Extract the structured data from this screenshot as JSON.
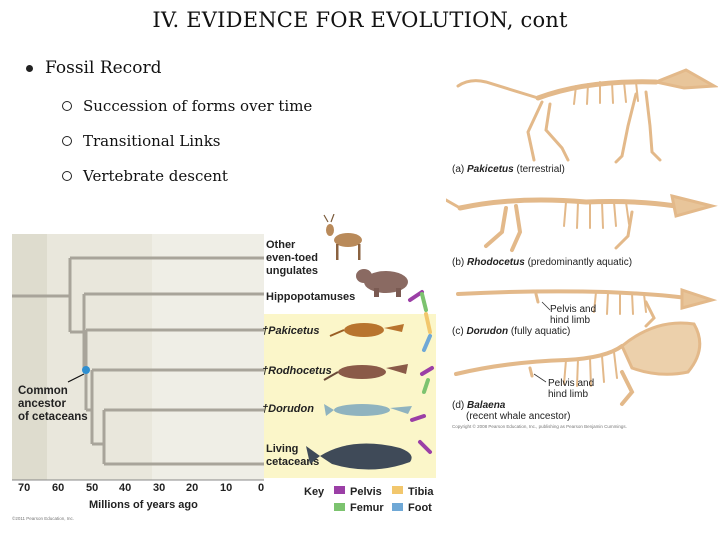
{
  "slide": {
    "title": "IV. EVIDENCE FOR EVOLUTION, cont",
    "bullet": "Fossil Record",
    "subbullets": [
      "Succession of forms over time",
      "Transitional Links",
      "Vertebrate descent"
    ]
  },
  "tree": {
    "taxa": [
      "Other even-toed ungulates",
      "Hippopotamuses",
      "Pakicetus",
      "Rodhocetus",
      "Dorudon",
      "Living cetaceans"
    ],
    "taxa_lines": [
      [
        "Other",
        "even-toed",
        "ungulates"
      ],
      [
        "Hippopotamuses"
      ],
      [
        "Pakicetus"
      ],
      [
        "Rodhocetus"
      ],
      [
        "Dorudon"
      ],
      [
        "Living",
        "cetaceans"
      ]
    ],
    "dagger": "†",
    "ancestor_label": [
      "Common",
      "ancestor",
      "of cetaceans"
    ],
    "axis_ticks": [
      "70",
      "60",
      "50",
      "40",
      "30",
      "20",
      "10",
      "0"
    ],
    "axis_title": "Millions of years ago",
    "key_title": "Key",
    "key": [
      {
        "label": "Pelvis",
        "color": "#9b3fa6"
      },
      {
        "label": "Tibia",
        "color": "#f2c76d"
      },
      {
        "label": "Femur",
        "color": "#7cc36f"
      },
      {
        "label": "Foot",
        "color": "#6fa8d6"
      }
    ],
    "copyright": "©2011 Pearson Education, Inc."
  },
  "skeletons": {
    "labels": [
      {
        "prefix": "(a)",
        "name": "Pakicetus",
        "suffix": "(terrestrial)"
      },
      {
        "prefix": "(b)",
        "name": "Rhodocetus",
        "suffix": "(predominantly aquatic)"
      },
      {
        "prefix": "(c)",
        "name": "Dorudon",
        "suffix": "(fully aquatic)"
      },
      {
        "prefix": "(d)",
        "name": "Balaena",
        "suffix": "(recent whale ancestor)"
      }
    ],
    "pelvis_label_1": [
      "Pelvis and",
      "hind limb"
    ],
    "pelvis_label_2": [
      "Pelvis and",
      "hind limb"
    ],
    "copyright": "Copyright © 2008 Pearson Education, Inc., publishing as Pearson Benjamin Cummings."
  }
}
